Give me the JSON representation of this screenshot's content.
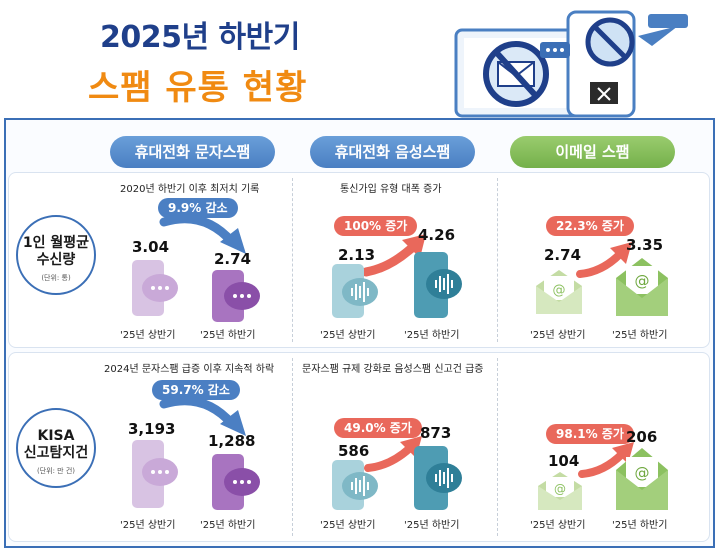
{
  "title": {
    "line1": "2025년 하반기",
    "line2": "스팸 유통 현황"
  },
  "columns": [
    {
      "label": "휴대전화 문자스팸"
    },
    {
      "label": "휴대전화 음성스팸"
    },
    {
      "label": "이메일 스팸"
    }
  ],
  "rows": [
    {
      "label_line1": "1인 월평균",
      "label_line2": "수신량",
      "unit": "(단위: 통)",
      "cells": [
        {
          "note": "2020년 하반기 이후 최저치 기록",
          "change": "9.9% 감소",
          "before": "3.04",
          "after": "2.74",
          "before_period": "'25년 상반기",
          "after_period": "'25년 하반기"
        },
        {
          "note": "통신가입 유형 대폭 증가",
          "change": "100% 증가",
          "before": "2.13",
          "after": "4.26",
          "before_period": "'25년 상반기",
          "after_period": "'25년 하반기"
        },
        {
          "note": "",
          "change": "22.3% 증가",
          "before": "2.74",
          "after": "3.35",
          "before_period": "'25년 상반기",
          "after_period": "'25년 하반기"
        }
      ]
    },
    {
      "label_line1": "KISA",
      "label_line2": "신고탐지건",
      "unit": "(단위: 만 건)",
      "cells": [
        {
          "note": "2024년 문자스팸 급증 이후 지속적 하락",
          "change": "59.7% 감소",
          "before": "3,193",
          "after": "1,288",
          "before_period": "'25년 상반기",
          "after_period": "'25년 하반기"
        },
        {
          "note": "문자스팸 규제 강화로 음성스팸 신고건 급증",
          "change": "49.0% 증가",
          "before": "586",
          "after": "873",
          "before_period": "'25년 상반기",
          "after_period": "'25년 하반기"
        },
        {
          "note": "",
          "change": "98.1% 증가",
          "before": "104",
          "after": "206",
          "before_period": "'25년 상반기",
          "after_period": "'25년 하반기"
        }
      ]
    }
  ],
  "colors": {
    "title_blue": "#1f3f8a",
    "title_orange": "#f08a12",
    "decrease": "#4b7fc3",
    "increase": "#e9685b",
    "phone_purple_light": "#c9a9d8",
    "phone_purple_dark": "#9b5fb5",
    "phone_teal_light": "#8fc3cf",
    "phone_teal_dark": "#3f8ea6",
    "mail_green_light": "#c4dca4",
    "mail_green_dark": "#8cc160"
  },
  "icons": [
    "no-mail-icon",
    "phone-chat-icon",
    "phone-voice-icon",
    "envelope-at-icon",
    "curved-arrow-icon"
  ]
}
